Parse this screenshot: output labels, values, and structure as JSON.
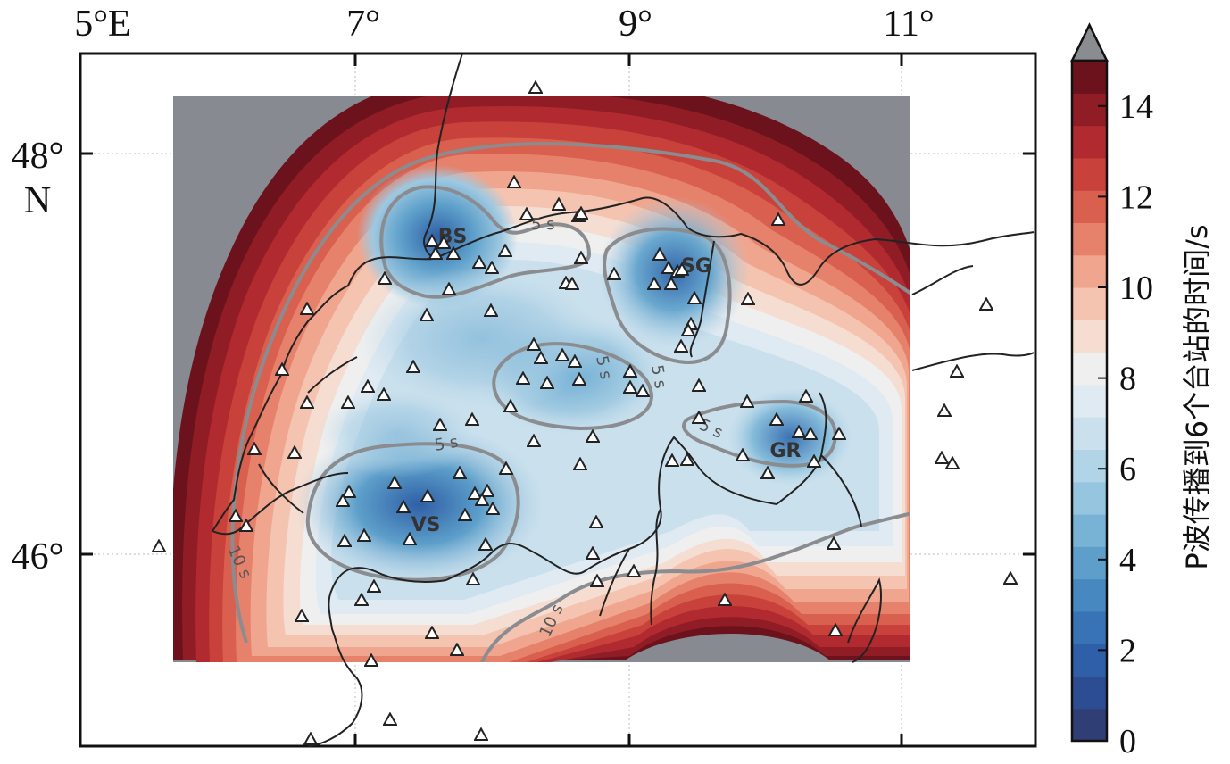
{
  "map": {
    "lon_ticks": [
      {
        "label": "5°E",
        "lon": 5
      },
      {
        "label": "7°",
        "lon": 7
      },
      {
        "label": "9°",
        "lon": 9
      },
      {
        "label": "11°",
        "lon": 11
      }
    ],
    "lat_ticks": [
      {
        "label": "48°",
        "lat": 48
      },
      {
        "label": "N",
        "lat": 47.89
      },
      {
        "label": "46°",
        "lat": 46
      }
    ],
    "region_labels": [
      "BS",
      "SG",
      "VS",
      "GR"
    ],
    "contour_labels": [
      "5 s",
      "5 s",
      "5 s",
      "5 s",
      "5 s",
      "10 s",
      "10 s"
    ],
    "no_data_color": "#878b91"
  },
  "colorbar": {
    "title": "P波传播到6个台站的时间/s",
    "tick_labels": [
      "0",
      "2",
      "4",
      "6",
      "8",
      "10",
      "12",
      "14"
    ],
    "range": [
      0,
      15
    ],
    "over_color": "#8a8c90",
    "colors": [
      "#2f3e74",
      "#2d4d93",
      "#2e5fa8",
      "#3873b5",
      "#4788c0",
      "#5d9fca",
      "#78b3d5",
      "#95c5df",
      "#b1d4e7",
      "#cae0ed",
      "#dfeaf2",
      "#efefef",
      "#f5ddd2",
      "#f4c4b0",
      "#f0a68e",
      "#e6826c",
      "#d9604f",
      "#c8413a",
      "#b02a2f",
      "#901c26",
      "#6c121c"
    ]
  },
  "legend": {
    "station_symbol": "triangle-icon"
  }
}
